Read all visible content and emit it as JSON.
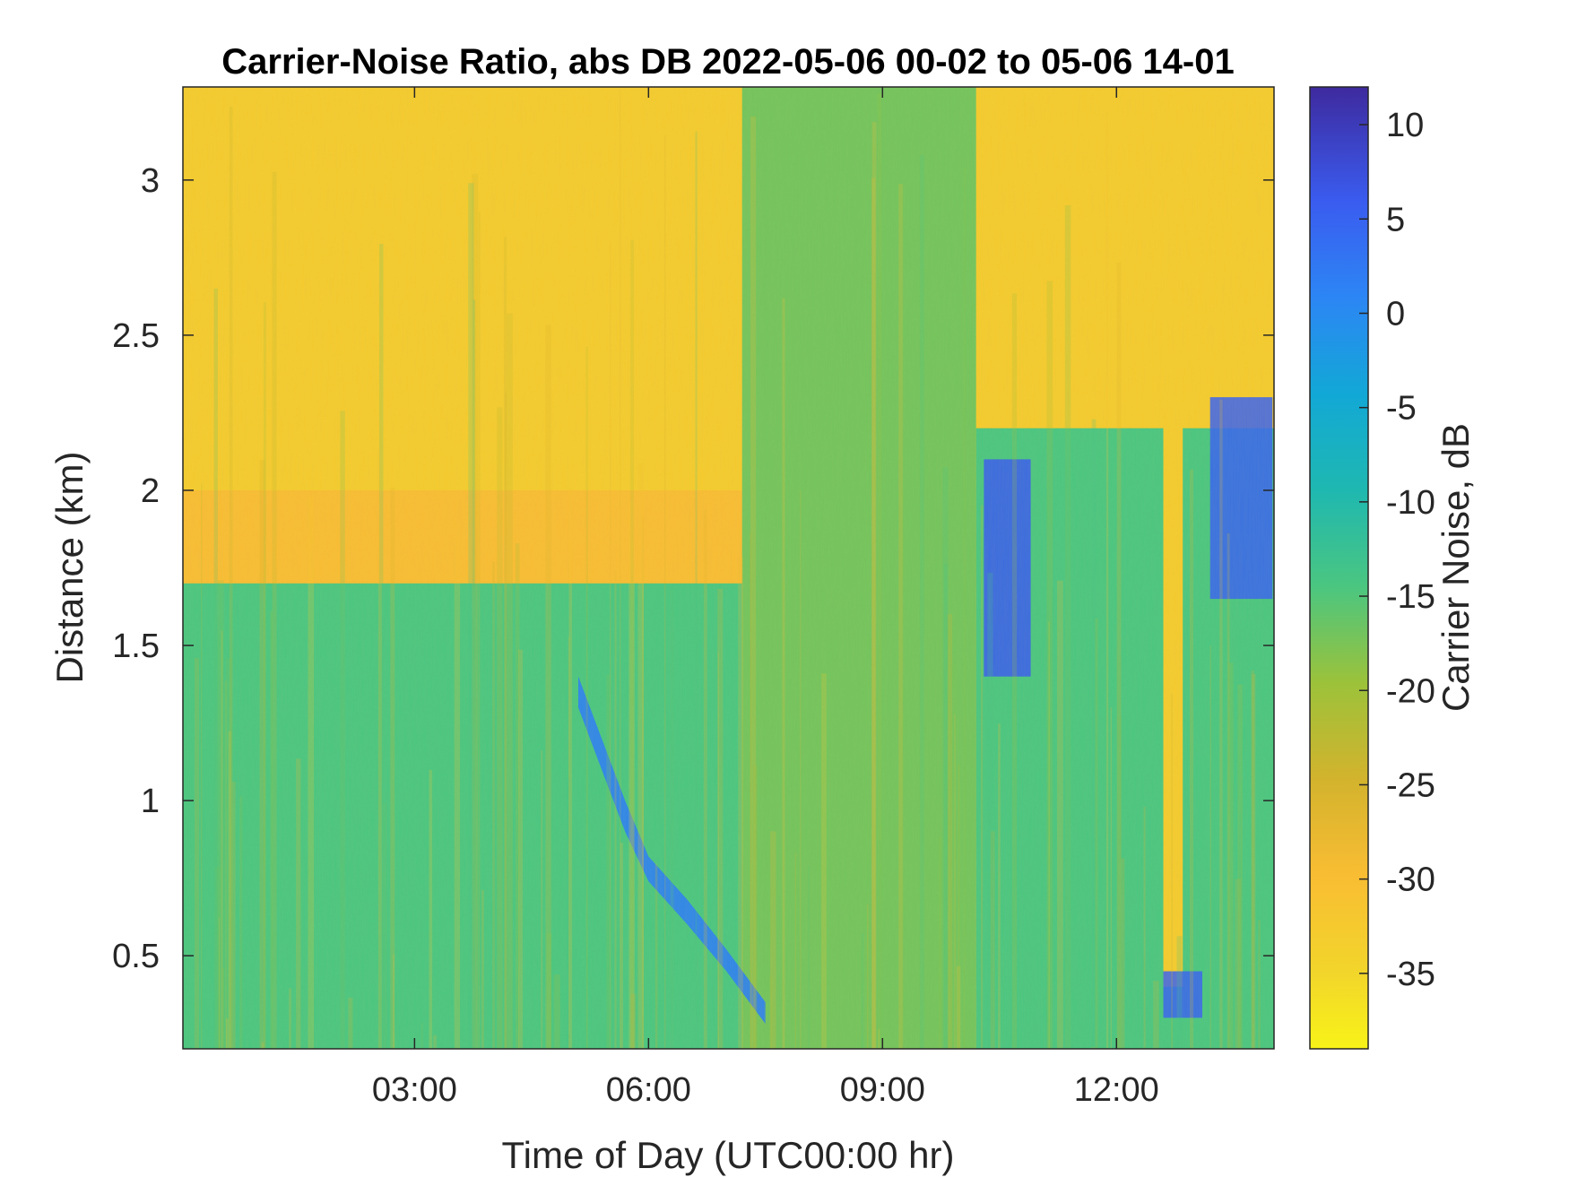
{
  "chart_data": {
    "type": "heatmap",
    "title": "Carrier-Noise Ratio, abs DB 2022-05-06 00-02 to 05-06 14-01",
    "xlabel": "Time of Day (UTC00:00 hr)",
    "ylabel": "Distance (km)",
    "colorbar_label": "Carrier Noise, dB",
    "x_unit": "hours UTC",
    "xlim": [
      0.03,
      14.02
    ],
    "ylim": [
      0.2,
      3.3
    ],
    "clim": [
      -39,
      12
    ],
    "x_ticks": [
      {
        "value": 3,
        "label": "03:00"
      },
      {
        "value": 6,
        "label": "06:00"
      },
      {
        "value": 9,
        "label": "09:00"
      },
      {
        "value": 12,
        "label": "12:00"
      }
    ],
    "y_ticks": [
      {
        "value": 0.5,
        "label": "0.5"
      },
      {
        "value": 1,
        "label": "1"
      },
      {
        "value": 1.5,
        "label": "1.5"
      },
      {
        "value": 2,
        "label": "2"
      },
      {
        "value": 2.5,
        "label": "2.5"
      },
      {
        "value": 3,
        "label": "3"
      }
    ],
    "colorbar_ticks": [
      {
        "value": 10,
        "label": "10"
      },
      {
        "value": 5,
        "label": "5"
      },
      {
        "value": 0,
        "label": "0"
      },
      {
        "value": -5,
        "label": "-5"
      },
      {
        "value": -10,
        "label": "-10"
      },
      {
        "value": -15,
        "label": "-15"
      },
      {
        "value": -20,
        "label": "-20"
      },
      {
        "value": -25,
        "label": "-25"
      },
      {
        "value": -30,
        "label": "-30"
      },
      {
        "value": -35,
        "label": "-35"
      }
    ],
    "colormap": "parula-reversed",
    "colors": {
      "noise_floor": "#F9BD33",
      "signal_mid": "#1FB8B0",
      "signal_strong": "#3A4FE8",
      "colormap_top": "#3E2A9E",
      "colormap_bottom": "#F8F318"
    },
    "regions": [
      {
        "t_start": 0.03,
        "t_end": 14.02,
        "d_min": 2.0,
        "d_max": 3.3,
        "value": -33,
        "description": "noise floor"
      },
      {
        "t_start": 0.03,
        "t_end": 7.2,
        "d_min": 0.2,
        "d_max": 1.7,
        "value": -16
      },
      {
        "t_start": 7.2,
        "t_end": 10.2,
        "d_min": 0.2,
        "d_max": 3.3,
        "value": -18
      },
      {
        "t_start": 10.2,
        "t_end": 14.02,
        "d_min": 0.2,
        "d_max": 2.2,
        "value": -16
      },
      {
        "t_start": 12.6,
        "t_end": 12.85,
        "d_min": 0.4,
        "d_max": 3.3,
        "value": -33
      },
      {
        "t_start": 5.1,
        "t_end": 7.5,
        "d_min": 0.35,
        "d_max": 1.4,
        "value": -2,
        "description": "descending strong-return layer"
      },
      {
        "t_start": 10.3,
        "t_end": 10.9,
        "d_min": 1.4,
        "d_max": 2.1,
        "value": 3
      },
      {
        "t_start": 13.2,
        "t_end": 14.0,
        "d_min": 1.65,
        "d_max": 2.3,
        "value": 2
      },
      {
        "t_start": 12.6,
        "t_end": 13.1,
        "d_min": 0.3,
        "d_max": 0.45,
        "value": 2
      }
    ]
  }
}
